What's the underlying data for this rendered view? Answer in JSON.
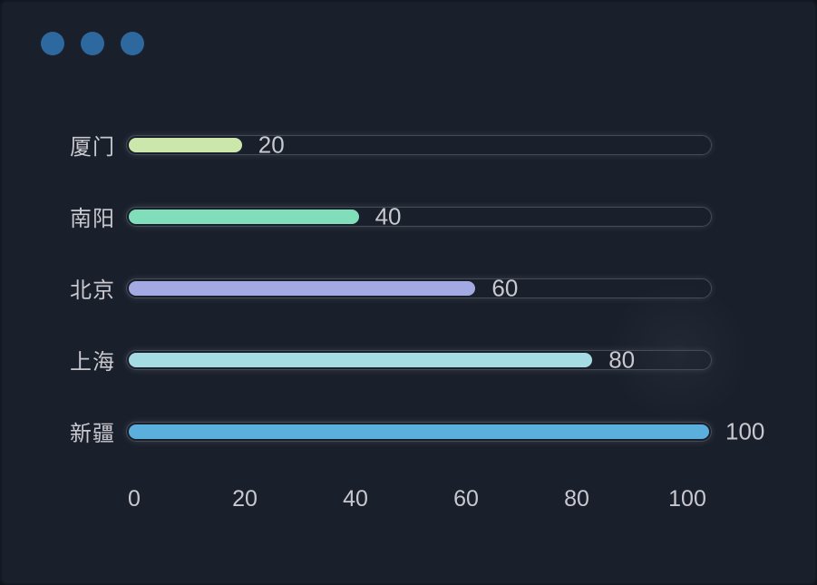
{
  "window": {
    "background_color": "#1a202b",
    "control_dot_color": "#2d689e",
    "controls": [
      {
        "name": "window-dot-1"
      },
      {
        "name": "window-dot-2"
      },
      {
        "name": "window-dot-3"
      }
    ]
  },
  "chart_data": {
    "type": "bar",
    "orientation": "horizontal",
    "title": "",
    "xlabel": "",
    "ylabel": "",
    "categories": [
      "厦门",
      "南阳",
      "北京",
      "上海",
      "新疆"
    ],
    "values": [
      20,
      40,
      60,
      80,
      100
    ],
    "value_labels": [
      "20",
      "40",
      "60",
      "80",
      "100"
    ],
    "bar_colors": [
      "#cbe7ab",
      "#80dfba",
      "#a3aae3",
      "#a5dbe2",
      "#5bafdd"
    ],
    "xlim": [
      0,
      100
    ],
    "x_ticks": [
      "0",
      "20",
      "40",
      "60",
      "80",
      "100"
    ],
    "grid": false,
    "legend": false,
    "text_color": "#c8c8ce",
    "track_border_color": "#454c58"
  }
}
